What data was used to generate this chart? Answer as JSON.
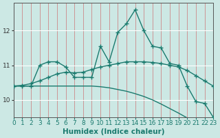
{
  "title": "",
  "xlabel": "Humidex (Indice chaleur)",
  "bg_color": "#cce8e4",
  "line_color": "#1a7a6e",
  "grid_color_v": "#d9a0a0",
  "grid_color_h": "#ffffff",
  "x": [
    0,
    1,
    2,
    3,
    4,
    5,
    6,
    7,
    8,
    9,
    10,
    11,
    12,
    13,
    14,
    15,
    16,
    17,
    18,
    19,
    20,
    21,
    22,
    23
  ],
  "y_jagged": [
    10.4,
    10.4,
    10.4,
    11.0,
    11.1,
    11.1,
    10.95,
    10.65,
    10.65,
    10.65,
    11.55,
    11.1,
    11.95,
    12.2,
    12.6,
    12.0,
    11.55,
    11.5,
    11.05,
    11.0,
    10.4,
    9.95,
    9.9,
    9.5
  ],
  "y_smooth": [
    10.4,
    10.42,
    10.47,
    10.55,
    10.65,
    10.75,
    10.8,
    10.78,
    10.8,
    10.88,
    10.95,
    11.0,
    11.05,
    11.1,
    11.1,
    11.1,
    11.08,
    11.05,
    11.0,
    10.95,
    10.85,
    10.7,
    10.55,
    10.4
  ],
  "y_trend": [
    10.4,
    10.4,
    10.4,
    10.4,
    10.4,
    10.4,
    10.4,
    10.4,
    10.4,
    10.4,
    10.38,
    10.35,
    10.3,
    10.25,
    10.18,
    10.1,
    10.0,
    9.88,
    9.75,
    9.62,
    9.48,
    9.35,
    9.22,
    9.1
  ],
  "xlim": [
    0,
    23
  ],
  "ylim": [
    9.5,
    12.8
  ],
  "yticks": [
    10,
    11,
    12
  ],
  "xticks": [
    0,
    1,
    2,
    3,
    4,
    5,
    6,
    7,
    8,
    9,
    10,
    11,
    12,
    13,
    14,
    15,
    16,
    17,
    18,
    19,
    20,
    21,
    22,
    23
  ],
  "marker": "+",
  "markersize": 5,
  "linewidth": 1.0,
  "fontsize_label": 7.5,
  "fontsize_tick": 6.5
}
